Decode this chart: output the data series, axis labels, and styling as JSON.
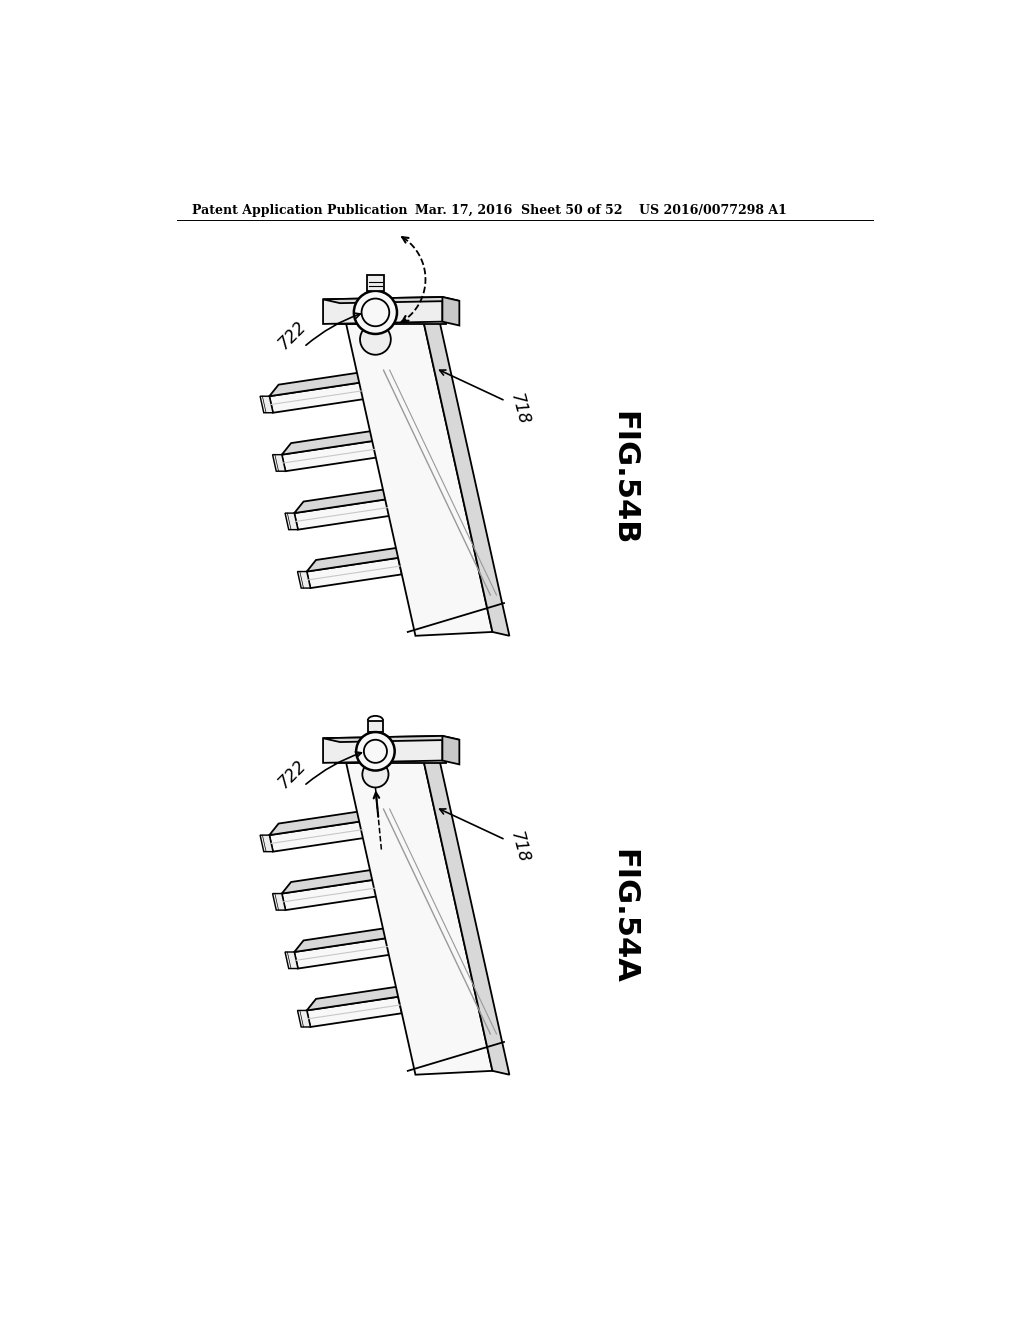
{
  "background_color": "#ffffff",
  "page_width": 10.24,
  "page_height": 13.2,
  "header_text_left": "Patent Application Publication",
  "header_text_center": "Mar. 17, 2016  Sheet 50 of 52",
  "header_text_right": "US 2016/0077298 A1",
  "fig54b_label": "FIG.54B",
  "fig54a_label": "FIG.54A",
  "label_718": "718",
  "label_722": "722",
  "line_color": "#000000",
  "face_light": "#f8f8f8",
  "face_mid": "#eeeeee",
  "face_dark": "#d8d8d8",
  "face_darker": "#c8c8c8",
  "gray_line": "#999999"
}
